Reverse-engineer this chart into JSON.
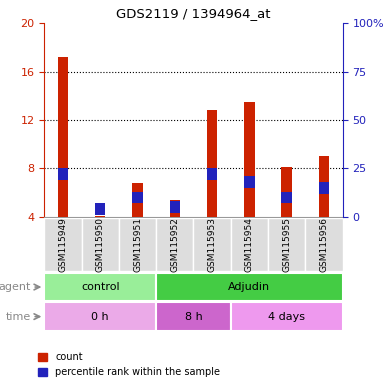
{
  "title": "GDS2119 / 1394964_at",
  "samples": [
    "GSM115949",
    "GSM115950",
    "GSM115951",
    "GSM115952",
    "GSM115953",
    "GSM115954",
    "GSM115955",
    "GSM115956"
  ],
  "red_values": [
    17.2,
    4.1,
    6.8,
    5.4,
    12.8,
    13.5,
    8.1,
    9.0
  ],
  "blue_pct": [
    22,
    4,
    10,
    5,
    22,
    18,
    10,
    15
  ],
  "red_color": "#CC2200",
  "blue_color": "#2222BB",
  "ylim_left": [
    4,
    20
  ],
  "ylim_right": [
    0,
    100
  ],
  "yticks_left": [
    4,
    8,
    12,
    16,
    20
  ],
  "yticks_right": [
    0,
    25,
    50,
    75,
    100
  ],
  "ytick_labels_right": [
    "0",
    "25",
    "50",
    "75",
    "100%"
  ],
  "grid_lines": [
    8,
    12,
    16
  ],
  "agent_groups": [
    {
      "label": "control",
      "start": 0,
      "end": 3,
      "color": "#99EE99"
    },
    {
      "label": "Adjudin",
      "start": 3,
      "end": 8,
      "color": "#44CC44"
    }
  ],
  "time_groups": [
    {
      "label": "0 h",
      "start": 0,
      "end": 3,
      "color": "#EBAAE8"
    },
    {
      "label": "8 h",
      "start": 3,
      "end": 5,
      "color": "#CC66CC"
    },
    {
      "label": "4 days",
      "start": 5,
      "end": 8,
      "color": "#EE99EE"
    }
  ],
  "bar_width": 0.28,
  "legend_red": "count",
  "legend_blue": "percentile rank within the sample",
  "left_axis_color": "#CC2200",
  "right_axis_color": "#2222BB",
  "label_color": "#888888"
}
